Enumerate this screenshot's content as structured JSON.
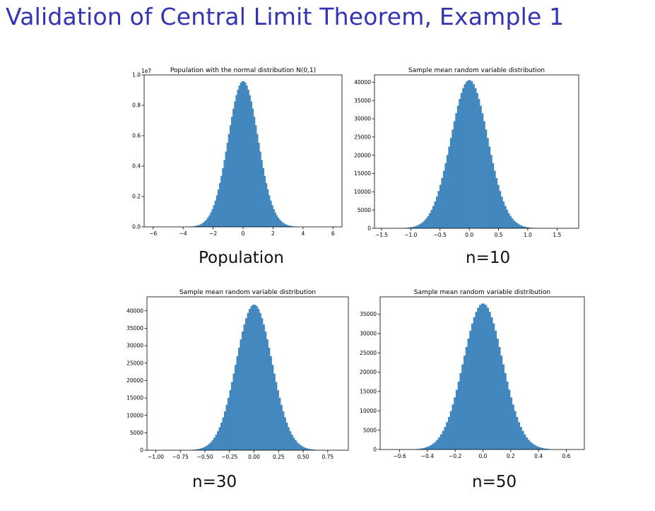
{
  "slide": {
    "title": "Validation of Central Limit Theorem, Example 1"
  },
  "colors": {
    "title": "#3333b3",
    "bar": "#4287be",
    "axis": "#000000"
  },
  "chart_data": [
    {
      "id": "population",
      "type": "bar",
      "title": "Population with the normal distribution N(0,1)",
      "caption": "Population",
      "mean": 0,
      "sd": 1,
      "peak": 0.96,
      "bin_width": 0.1,
      "xlim": [
        -6.6,
        6.6
      ],
      "ylim": [
        0,
        1.0
      ],
      "x_ticks": [
        -6,
        -4,
        -2,
        0,
        2,
        4,
        6
      ],
      "x_tick_labels": [
        "−6",
        "−4",
        "−2",
        "0",
        "2",
        "4",
        "6"
      ],
      "y_ticks": [
        0.0,
        0.2,
        0.4,
        0.6,
        0.8,
        1.0
      ],
      "y_tick_labels": [
        "0.0",
        "0.2",
        "0.4",
        "0.6",
        "0.8",
        "1.0"
      ],
      "y_scale_label": "1e7",
      "xlabel": "",
      "ylabel": ""
    },
    {
      "id": "n10",
      "type": "bar",
      "title": "Sample mean random variable distribution",
      "caption": "n=10",
      "mean": 0,
      "sd": 0.316,
      "peak": 40600,
      "bin_width": 0.03,
      "xlim": [
        -1.62,
        1.87
      ],
      "ylim": [
        0,
        42000
      ],
      "x_ticks": [
        -1.5,
        -1.0,
        -0.5,
        0.0,
        0.5,
        1.0,
        1.5
      ],
      "x_tick_labels": [
        "−1.5",
        "−1.0",
        "−0.5",
        "0.0",
        "0.5",
        "1.0",
        "1.5"
      ],
      "y_ticks": [
        0,
        5000,
        10000,
        15000,
        20000,
        25000,
        30000,
        35000,
        40000
      ],
      "y_tick_labels": [
        "0",
        "5000",
        "10000",
        "15000",
        "20000",
        "25000",
        "30000",
        "35000",
        "40000"
      ],
      "xlabel": "",
      "ylabel": ""
    },
    {
      "id": "n30",
      "type": "bar",
      "title": "Sample mean random variable distribution",
      "caption": "n=30",
      "mean": 0,
      "sd": 0.1826,
      "peak": 41800,
      "bin_width": 0.018,
      "xlim": [
        -1.09,
        0.96
      ],
      "ylim": [
        0,
        44000
      ],
      "x_ticks": [
        -1.0,
        -0.75,
        -0.5,
        -0.25,
        0.0,
        0.25,
        0.5,
        0.75
      ],
      "x_tick_labels": [
        "−1.00",
        "−0.75",
        "−0.50",
        "−0.25",
        "0.00",
        "0.25",
        "0.50",
        "0.75"
      ],
      "y_ticks": [
        0,
        5000,
        10000,
        15000,
        20000,
        25000,
        30000,
        35000,
        40000
      ],
      "y_tick_labels": [
        "0",
        "5000",
        "10000",
        "15000",
        "20000",
        "25000",
        "30000",
        "35000",
        "40000"
      ],
      "xlabel": "",
      "ylabel": ""
    },
    {
      "id": "n50",
      "type": "bar",
      "title": "Sample mean random variable distribution",
      "caption": "n=50",
      "mean": 0,
      "sd": 0.1414,
      "peak": 37800,
      "bin_width": 0.014,
      "xlim": [
        -0.74,
        0.73
      ],
      "ylim": [
        0,
        39500
      ],
      "x_ticks": [
        -0.6,
        -0.4,
        -0.2,
        0.0,
        0.2,
        0.4,
        0.6
      ],
      "x_tick_labels": [
        "−0.6",
        "−0.4",
        "−0.2",
        "0.0",
        "0.2",
        "0.4",
        "0.6"
      ],
      "y_ticks": [
        0,
        5000,
        10000,
        15000,
        20000,
        25000,
        30000,
        35000
      ],
      "y_tick_labels": [
        "0",
        "5000",
        "10000",
        "15000",
        "20000",
        "25000",
        "30000",
        "35000"
      ],
      "xlabel": "",
      "ylabel": ""
    }
  ]
}
